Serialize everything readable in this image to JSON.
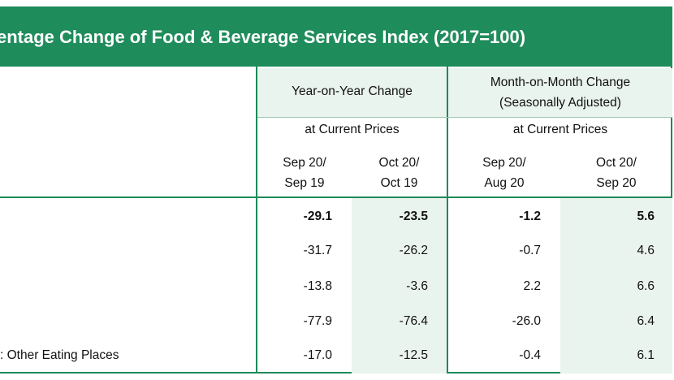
{
  "title": "entage Change of Food & Beverage Services Index (2017=100)",
  "header": {
    "yoy": "Year-on-Year Change",
    "mom_line1": "Month-on-Month Change",
    "mom_line2": "(Seasonally Adjusted)",
    "current_prices_yoy": "at Current Prices",
    "current_prices_mom": "at Current Prices",
    "cols": [
      {
        "l1": "Sep 20/",
        "l2": "Sep 19"
      },
      {
        "l1": "Oct 20/",
        "l2": "Oct 19"
      },
      {
        "l1": "Sep 20/",
        "l2": "Aug 20"
      },
      {
        "l1": "Oct 20/",
        "l2": "Sep 20"
      }
    ]
  },
  "rows": [
    {
      "label": "",
      "values": [
        "-29.1",
        "-23.5",
        "-1.2",
        "5.6"
      ],
      "bold": true
    },
    {
      "label": "",
      "values": [
        "-31.7",
        "-26.2",
        "-0.7",
        "4.6"
      ],
      "bold": false
    },
    {
      "label": "",
      "values": [
        "-13.8",
        "-3.6",
        "2.2",
        "6.6"
      ],
      "bold": false
    },
    {
      "label": "",
      "values": [
        "-77.9",
        "-76.4",
        "-26.0",
        "6.4"
      ],
      "bold": false
    },
    {
      "label": ": Other Eating Places",
      "values": [
        "-17.0",
        "-12.5",
        "-0.4",
        "6.1"
      ],
      "bold": false
    }
  ],
  "colors": {
    "accent": "#1f8c5c",
    "shade": "#eaf4ee"
  }
}
